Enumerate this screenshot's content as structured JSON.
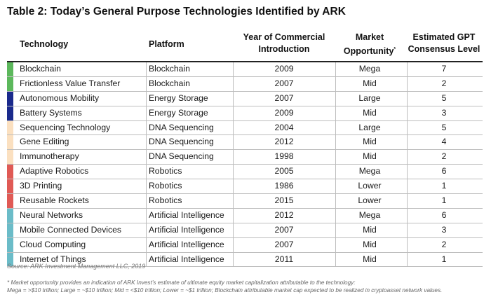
{
  "title": "Table 2: Today’s General Purpose Technologies Identified by ARK",
  "headers": {
    "technology": "Technology",
    "platform": "Platform",
    "year_line1": "Year of Commercial",
    "year_line2": "Introduction",
    "market_line1": "Market",
    "market_line2": "Opportunity",
    "market_mark": "*",
    "gpt_line1": "Estimated GPT",
    "gpt_line2": "Consensus Level"
  },
  "colors": {
    "Blockchain": "#5cb85c",
    "Energy Storage": "#1a2a8c",
    "DNA Sequencing": "#fbe0c0",
    "Robotics": "#e05a55",
    "Artificial Intelligence": "#6bbcc8"
  },
  "rows": [
    {
      "technology": "Blockchain",
      "platform": "Blockchain",
      "year": "2009",
      "market": "Mega",
      "gpt": "7"
    },
    {
      "technology": "Frictionless Value Transfer",
      "platform": "Blockchain",
      "year": "2007",
      "market": "Mid",
      "gpt": "2"
    },
    {
      "technology": "Autonomous Mobility",
      "platform": "Energy Storage",
      "year": "2007",
      "market": "Large",
      "gpt": "5"
    },
    {
      "technology": "Battery Systems",
      "platform": "Energy Storage",
      "year": "2009",
      "market": "Mid",
      "gpt": "3"
    },
    {
      "technology": "Sequencing Technology",
      "platform": "DNA Sequencing",
      "year": "2004",
      "market": "Large",
      "gpt": "5"
    },
    {
      "technology": "Gene Editing",
      "platform": "DNA Sequencing",
      "year": "2012",
      "market": "Mid",
      "gpt": "4"
    },
    {
      "technology": "Immunotherapy",
      "platform": "DNA Sequencing",
      "year": "1998",
      "market": "Mid",
      "gpt": "2"
    },
    {
      "technology": "Adaptive Robotics",
      "platform": "Robotics",
      "year": "2005",
      "market": "Mega",
      "gpt": "6"
    },
    {
      "technology": "3D Printing",
      "platform": "Robotics",
      "year": "1986",
      "market": "Lower",
      "gpt": "1"
    },
    {
      "technology": "Reusable Rockets",
      "platform": "Robotics",
      "year": "2015",
      "market": "Lower",
      "gpt": "1"
    },
    {
      "technology": "Neural Networks",
      "platform": "Artificial Intelligence",
      "year": "2012",
      "market": "Mega",
      "gpt": "6"
    },
    {
      "technology": "Mobile Connected Devices",
      "platform": "Artificial Intelligence",
      "year": "2007",
      "market": "Mid",
      "gpt": "3"
    },
    {
      "technology": "Cloud Computing",
      "platform": "Artificial Intelligence",
      "year": "2007",
      "market": "Mid",
      "gpt": "2"
    },
    {
      "technology": "Internet of Things",
      "platform": "Artificial Intelligence",
      "year": "2011",
      "market": "Mid",
      "gpt": "1"
    }
  ],
  "source": "Source: ARK Investment Management LLC, 2019",
  "footnote_line1": "* Market opportunity provides an indication of ARK Invest’s estimate of ultimate equity market capitalization attributable to the technology:",
  "footnote_line2": "Mega = >$10 trillion; Large = ~$10 trillion; Mid = <$10 trillion; Lower = ~$1 trillion; Blockchain attributable market cap expected to be realized in cryptoasset network values."
}
